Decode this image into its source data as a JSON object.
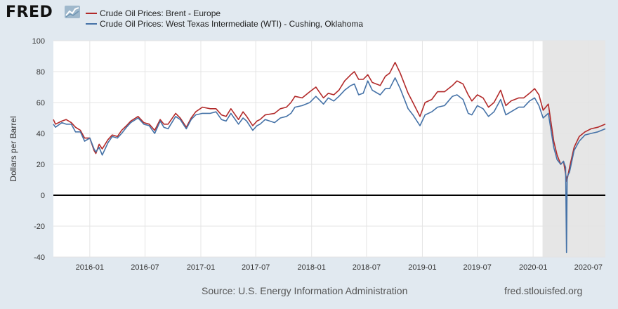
{
  "header": {
    "logo_text": "FRED",
    "logo_icon": "trend-line-icon",
    "legend": [
      {
        "name": "Crude Oil Prices: Brent - Europe",
        "color": "#b22a2a"
      },
      {
        "name": "Crude Oil Prices: West Texas Intermediate (WTI) - Cushing, Oklahoma",
        "color": "#4572a7"
      }
    ]
  },
  "footer": {
    "source": "Source: U.S. Energy Information Administration",
    "site": "fred.stlouisfed.org"
  },
  "chart_data": {
    "type": "line",
    "ylabel": "Dollars per Barrel",
    "ylim": [
      -40,
      100
    ],
    "yticks": [
      -40,
      -20,
      0,
      20,
      40,
      60,
      80,
      100
    ],
    "xlim": [
      "2015-09-03",
      "2020-08-26"
    ],
    "xticks": [
      "2016-01",
      "2016-07",
      "2017-01",
      "2017-07",
      "2018-01",
      "2018-07",
      "2019-01",
      "2019-07",
      "2020-01",
      "2020-07"
    ],
    "grid": true,
    "zero_line": true,
    "recession_shading": {
      "start": "2020-02-01",
      "end": "2020-08-26"
    },
    "series": [
      {
        "name": "Crude Oil Prices: Brent - Europe",
        "color": "#b22a2a",
        "points": [
          [
            "2015-09-03",
            49
          ],
          [
            "2015-09-10",
            46
          ],
          [
            "2015-10-01",
            48
          ],
          [
            "2015-10-15",
            49
          ],
          [
            "2015-11-01",
            47
          ],
          [
            "2015-11-15",
            44
          ],
          [
            "2015-12-01",
            42
          ],
          [
            "2015-12-15",
            37
          ],
          [
            "2016-01-01",
            37
          ],
          [
            "2016-01-15",
            29
          ],
          [
            "2016-01-21",
            27
          ],
          [
            "2016-02-01",
            33
          ],
          [
            "2016-02-11",
            30
          ],
          [
            "2016-03-01",
            36
          ],
          [
            "2016-03-15",
            39
          ],
          [
            "2016-04-01",
            38
          ],
          [
            "2016-04-15",
            42
          ],
          [
            "2016-05-01",
            45
          ],
          [
            "2016-05-15",
            48
          ],
          [
            "2016-06-08",
            51
          ],
          [
            "2016-06-27",
            47
          ],
          [
            "2016-07-15",
            46
          ],
          [
            "2016-08-02",
            42
          ],
          [
            "2016-08-20",
            49
          ],
          [
            "2016-09-01",
            46
          ],
          [
            "2016-09-15",
            46
          ],
          [
            "2016-10-10",
            53
          ],
          [
            "2016-10-25",
            50
          ],
          [
            "2016-11-14",
            44
          ],
          [
            "2016-11-30",
            50
          ],
          [
            "2016-12-15",
            54
          ],
          [
            "2017-01-06",
            57
          ],
          [
            "2017-02-01",
            56
          ],
          [
            "2017-02-20",
            56
          ],
          [
            "2017-03-10",
            52
          ],
          [
            "2017-03-25",
            51
          ],
          [
            "2017-04-10",
            56
          ],
          [
            "2017-05-05",
            49
          ],
          [
            "2017-05-20",
            54
          ],
          [
            "2017-06-01",
            51
          ],
          [
            "2017-06-21",
            45
          ],
          [
            "2017-07-05",
            48
          ],
          [
            "2017-07-15",
            49
          ],
          [
            "2017-08-01",
            52
          ],
          [
            "2017-09-01",
            53
          ],
          [
            "2017-09-20",
            56
          ],
          [
            "2017-10-10",
            57
          ],
          [
            "2017-10-25",
            60
          ],
          [
            "2017-11-07",
            64
          ],
          [
            "2017-12-01",
            63
          ],
          [
            "2017-12-26",
            67
          ],
          [
            "2018-01-15",
            70
          ],
          [
            "2018-02-09",
            63
          ],
          [
            "2018-02-25",
            66
          ],
          [
            "2018-03-15",
            65
          ],
          [
            "2018-04-01",
            68
          ],
          [
            "2018-04-20",
            74
          ],
          [
            "2018-05-10",
            78
          ],
          [
            "2018-05-22",
            80
          ],
          [
            "2018-06-05",
            75
          ],
          [
            "2018-06-20",
            75
          ],
          [
            "2018-07-05",
            78
          ],
          [
            "2018-07-20",
            73
          ],
          [
            "2018-08-15",
            71
          ],
          [
            "2018-09-01",
            77
          ],
          [
            "2018-09-15",
            79
          ],
          [
            "2018-10-03",
            86
          ],
          [
            "2018-10-20",
            79
          ],
          [
            "2018-11-01",
            73
          ],
          [
            "2018-11-15",
            66
          ],
          [
            "2018-12-01",
            60
          ],
          [
            "2018-12-24",
            51
          ],
          [
            "2019-01-10",
            60
          ],
          [
            "2019-02-01",
            62
          ],
          [
            "2019-02-20",
            67
          ],
          [
            "2019-03-15",
            67
          ],
          [
            "2019-04-10",
            71
          ],
          [
            "2019-04-25",
            74
          ],
          [
            "2019-05-15",
            72
          ],
          [
            "2019-06-01",
            65
          ],
          [
            "2019-06-13",
            61
          ],
          [
            "2019-07-01",
            65
          ],
          [
            "2019-07-20",
            63
          ],
          [
            "2019-08-07",
            57
          ],
          [
            "2019-08-25",
            60
          ],
          [
            "2019-09-16",
            68
          ],
          [
            "2019-10-03",
            58
          ],
          [
            "2019-10-20",
            61
          ],
          [
            "2019-11-15",
            63
          ],
          [
            "2019-12-01",
            63
          ],
          [
            "2019-12-20",
            66
          ],
          [
            "2020-01-06",
            69
          ],
          [
            "2020-01-20",
            65
          ],
          [
            "2020-02-03",
            55
          ],
          [
            "2020-02-20",
            59
          ],
          [
            "2020-03-09",
            35
          ],
          [
            "2020-03-20",
            26
          ],
          [
            "2020-04-01",
            20
          ],
          [
            "2020-04-10",
            22
          ],
          [
            "2020-04-21",
            9
          ],
          [
            "2020-04-30",
            18
          ],
          [
            "2020-05-15",
            31
          ],
          [
            "2020-06-01",
            38
          ],
          [
            "2020-06-20",
            41
          ],
          [
            "2020-07-10",
            43
          ],
          [
            "2020-08-01",
            44
          ],
          [
            "2020-08-26",
            46
          ]
        ]
      },
      {
        "name": "Crude Oil Prices: West Texas Intermediate (WTI) - Cushing, Oklahoma",
        "color": "#4572a7",
        "points": [
          [
            "2015-09-03",
            46
          ],
          [
            "2015-09-10",
            44
          ],
          [
            "2015-10-01",
            47
          ],
          [
            "2015-10-15",
            46
          ],
          [
            "2015-11-01",
            46
          ],
          [
            "2015-11-15",
            41
          ],
          [
            "2015-12-01",
            41
          ],
          [
            "2015-12-15",
            35
          ],
          [
            "2016-01-01",
            37
          ],
          [
            "2016-01-15",
            30
          ],
          [
            "2016-01-21",
            28
          ],
          [
            "2016-02-01",
            31
          ],
          [
            "2016-02-11",
            26
          ],
          [
            "2016-03-01",
            34
          ],
          [
            "2016-03-15",
            38
          ],
          [
            "2016-04-01",
            37
          ],
          [
            "2016-04-15",
            40
          ],
          [
            "2016-05-01",
            44
          ],
          [
            "2016-05-15",
            47
          ],
          [
            "2016-06-08",
            50
          ],
          [
            "2016-06-27",
            46
          ],
          [
            "2016-07-15",
            45
          ],
          [
            "2016-08-02",
            40
          ],
          [
            "2016-08-20",
            48
          ],
          [
            "2016-09-01",
            44
          ],
          [
            "2016-09-15",
            43
          ],
          [
            "2016-10-10",
            51
          ],
          [
            "2016-10-25",
            49
          ],
          [
            "2016-11-14",
            43
          ],
          [
            "2016-11-30",
            49
          ],
          [
            "2016-12-15",
            52
          ],
          [
            "2017-01-06",
            53
          ],
          [
            "2017-02-01",
            53
          ],
          [
            "2017-02-20",
            54
          ],
          [
            "2017-03-10",
            49
          ],
          [
            "2017-03-25",
            48
          ],
          [
            "2017-04-10",
            53
          ],
          [
            "2017-05-05",
            46
          ],
          [
            "2017-05-20",
            50
          ],
          [
            "2017-06-01",
            48
          ],
          [
            "2017-06-21",
            42
          ],
          [
            "2017-07-05",
            45
          ],
          [
            "2017-07-15",
            46
          ],
          [
            "2017-08-01",
            49
          ],
          [
            "2017-09-01",
            47
          ],
          [
            "2017-09-20",
            50
          ],
          [
            "2017-10-10",
            51
          ],
          [
            "2017-10-25",
            53
          ],
          [
            "2017-11-07",
            57
          ],
          [
            "2017-12-01",
            58
          ],
          [
            "2017-12-26",
            60
          ],
          [
            "2018-01-15",
            64
          ],
          [
            "2018-02-09",
            59
          ],
          [
            "2018-02-25",
            63
          ],
          [
            "2018-03-15",
            61
          ],
          [
            "2018-04-01",
            64
          ],
          [
            "2018-04-20",
            68
          ],
          [
            "2018-05-10",
            71
          ],
          [
            "2018-05-22",
            72
          ],
          [
            "2018-06-05",
            65
          ],
          [
            "2018-06-20",
            66
          ],
          [
            "2018-07-05",
            74
          ],
          [
            "2018-07-20",
            68
          ],
          [
            "2018-08-15",
            65
          ],
          [
            "2018-09-01",
            69
          ],
          [
            "2018-09-15",
            69
          ],
          [
            "2018-10-03",
            76
          ],
          [
            "2018-10-20",
            69
          ],
          [
            "2018-11-01",
            63
          ],
          [
            "2018-11-15",
            56
          ],
          [
            "2018-12-01",
            52
          ],
          [
            "2018-12-24",
            45
          ],
          [
            "2019-01-10",
            52
          ],
          [
            "2019-02-01",
            54
          ],
          [
            "2019-02-20",
            57
          ],
          [
            "2019-03-15",
            58
          ],
          [
            "2019-04-10",
            64
          ],
          [
            "2019-04-25",
            65
          ],
          [
            "2019-05-15",
            62
          ],
          [
            "2019-06-01",
            53
          ],
          [
            "2019-06-13",
            52
          ],
          [
            "2019-07-01",
            58
          ],
          [
            "2019-07-20",
            56
          ],
          [
            "2019-08-07",
            51
          ],
          [
            "2019-08-25",
            54
          ],
          [
            "2019-09-16",
            62
          ],
          [
            "2019-10-03",
            52
          ],
          [
            "2019-10-20",
            54
          ],
          [
            "2019-11-15",
            57
          ],
          [
            "2019-12-01",
            57
          ],
          [
            "2019-12-20",
            61
          ],
          [
            "2020-01-06",
            63
          ],
          [
            "2020-01-20",
            58
          ],
          [
            "2020-02-03",
            50
          ],
          [
            "2020-02-20",
            53
          ],
          [
            "2020-03-09",
            31
          ],
          [
            "2020-03-20",
            23
          ],
          [
            "2020-04-01",
            20
          ],
          [
            "2020-04-10",
            22
          ],
          [
            "2020-04-17",
            18
          ],
          [
            "2020-04-20",
            -37
          ],
          [
            "2020-04-22",
            12
          ],
          [
            "2020-04-30",
            15
          ],
          [
            "2020-05-15",
            29
          ],
          [
            "2020-06-01",
            35
          ],
          [
            "2020-06-20",
            39
          ],
          [
            "2020-07-10",
            40
          ],
          [
            "2020-08-01",
            41
          ],
          [
            "2020-08-26",
            43
          ]
        ]
      }
    ]
  }
}
